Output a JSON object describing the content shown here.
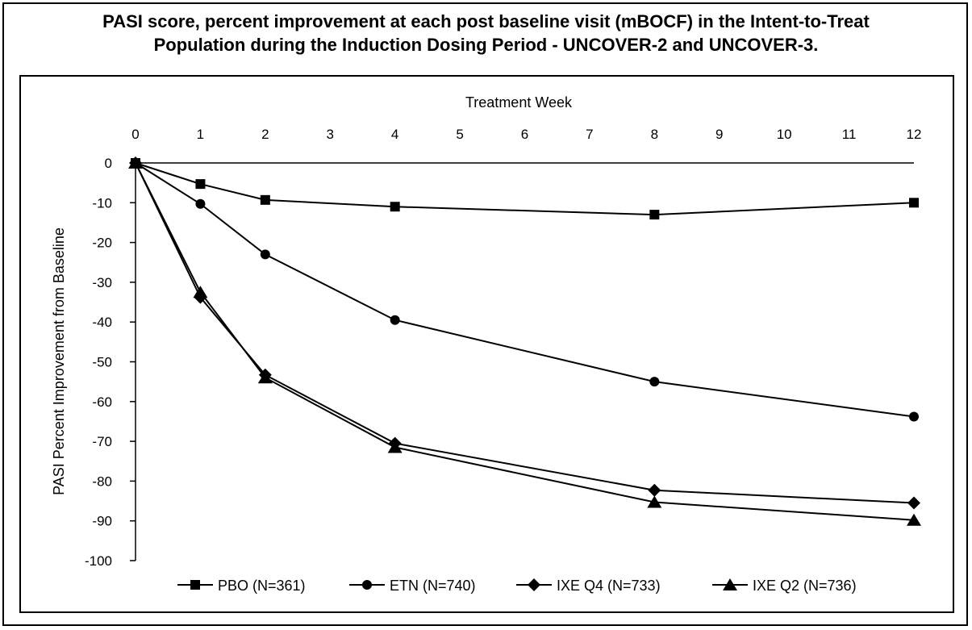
{
  "title": {
    "line1": "PASI score, percent improvement at each post baseline visit (mBOCF) in the Intent-to-Treat",
    "line2": "Population during the Induction Dosing Period - UNCOVER-2 and UNCOVER-3."
  },
  "chart_data": {
    "type": "line",
    "title": "PASI score, percent improvement at each post baseline visit (mBOCF) in the Intent-to-Treat Population during the Induction Dosing Period - UNCOVER-2 and UNCOVER-3.",
    "xlabel": "Treatment Week",
    "ylabel": "PASI Percent Improvement from Baseline",
    "xlim": [
      0,
      12
    ],
    "ylim": [
      -100,
      0
    ],
    "x_ticks": [
      0,
      1,
      2,
      3,
      4,
      5,
      6,
      7,
      8,
      9,
      10,
      11,
      12
    ],
    "y_ticks": [
      0,
      -10,
      -20,
      -30,
      -40,
      -50,
      -60,
      -70,
      -80,
      -90,
      -100
    ],
    "x_axis_position": "top",
    "grid": false,
    "legend_position": "bottom",
    "series": [
      {
        "name": "PBO (N=361)",
        "marker": "square",
        "color": "#000000",
        "x": [
          0,
          1,
          2,
          4,
          8,
          12
        ],
        "y": [
          0,
          -5.3,
          -9.3,
          -11.0,
          -13.0,
          -10.0
        ]
      },
      {
        "name": "ETN (N=740)",
        "marker": "circle",
        "color": "#000000",
        "x": [
          0,
          1,
          2,
          4,
          8,
          12
        ],
        "y": [
          0,
          -10.3,
          -23.0,
          -39.5,
          -55.0,
          -63.8
        ]
      },
      {
        "name": "IXE Q4 (N=733)",
        "marker": "diamond",
        "color": "#000000",
        "x": [
          0,
          1,
          2,
          4,
          8,
          12
        ],
        "y": [
          0,
          -33.8,
          -53.3,
          -70.5,
          -82.3,
          -85.5
        ]
      },
      {
        "name": "IXE Q2 (N=736)",
        "marker": "triangle",
        "color": "#000000",
        "x": [
          0,
          1,
          2,
          4,
          8,
          12
        ],
        "y": [
          0,
          -32.5,
          -54.0,
          -71.5,
          -85.3,
          -89.8
        ]
      }
    ]
  }
}
